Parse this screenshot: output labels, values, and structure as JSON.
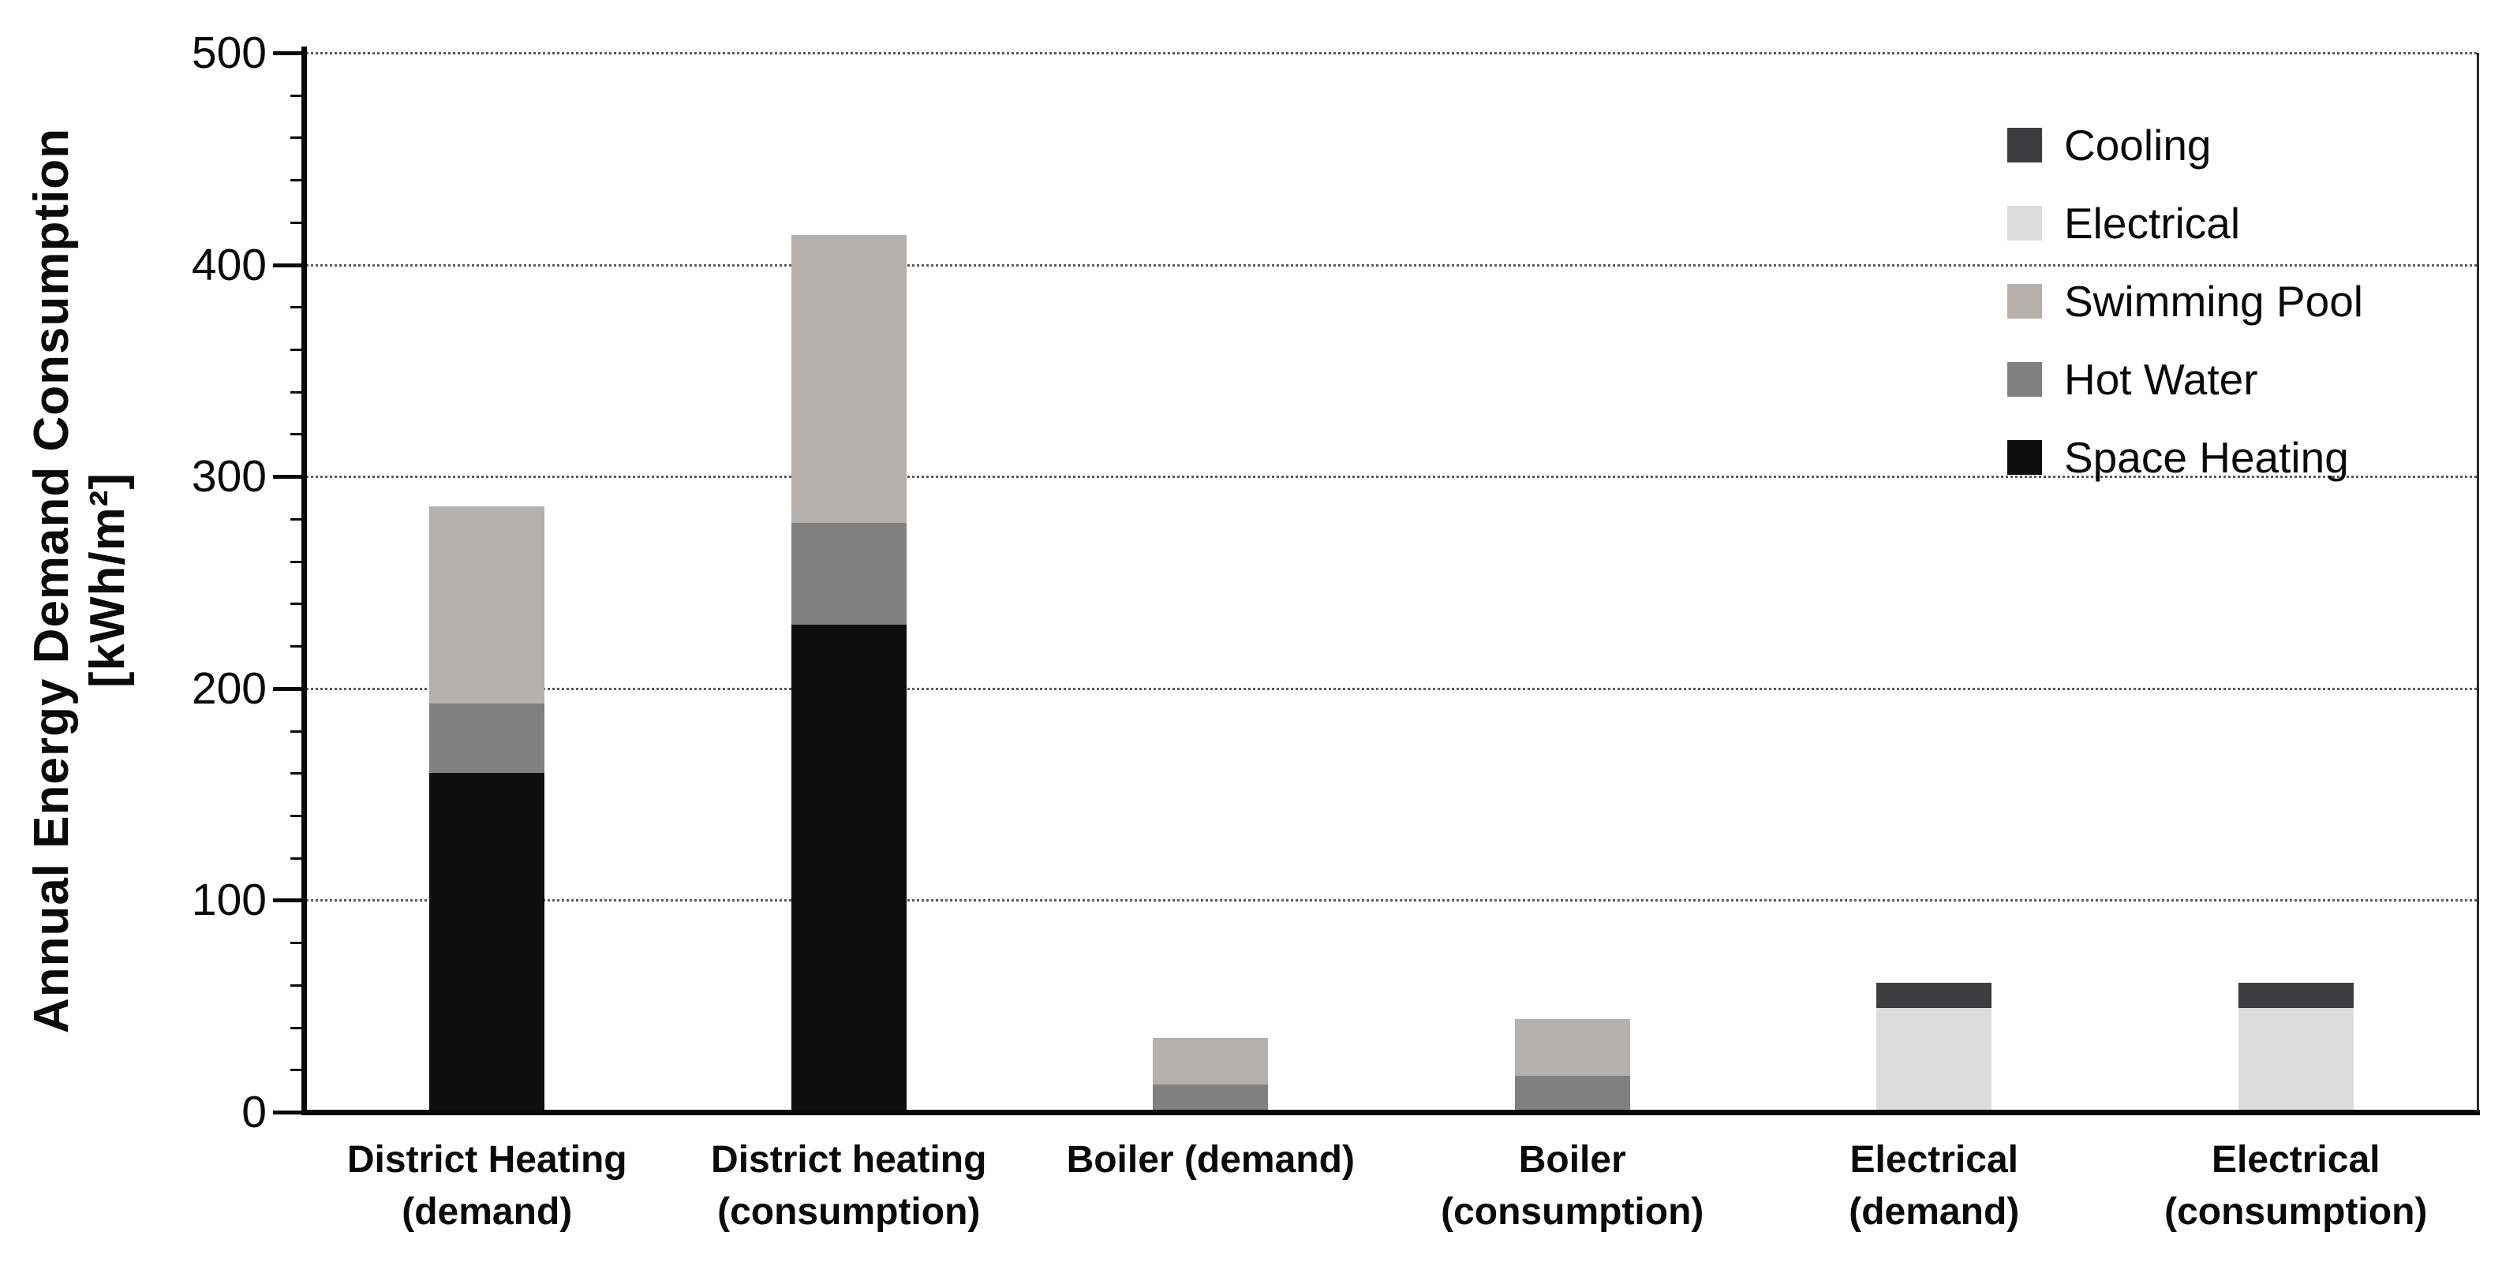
{
  "chart_data": {
    "type": "bar",
    "stacked": true,
    "title": "",
    "ylabel": "Annual Energy Demand Consumption [kWh/m²]",
    "ylabel_line1": "Annual Energy Demand Consumption",
    "ylabel_line2": "[kWh/m²]",
    "ylim": [
      0,
      500
    ],
    "yticks": [
      0,
      100,
      200,
      300,
      400,
      500
    ],
    "minor_tick_step": 20,
    "grid": "horizontal dotted lines at every major tick",
    "legend_position": "top-right inside plot",
    "categories": [
      [
        "District Heating",
        "(demand)"
      ],
      [
        "District heating",
        "(consumption)"
      ],
      [
        "Boiler (demand)"
      ],
      [
        "Boiler",
        "(consumption)"
      ],
      [
        "Electrical",
        "(demand)"
      ],
      [
        "Electrical",
        "(consumption)"
      ]
    ],
    "series": [
      {
        "name": "Space Heating",
        "color": "#0e0e0e",
        "values": [
          160,
          230,
          0,
          0,
          0,
          0
        ]
      },
      {
        "name": "Hot Water",
        "color": "#808080",
        "values": [
          33,
          48,
          13,
          17,
          0,
          0
        ]
      },
      {
        "name": "Swimming Pool",
        "color": "#b4b0ad",
        "values": [
          93,
          136,
          22,
          27,
          0,
          0
        ]
      },
      {
        "name": "Electrical",
        "color": "#dcdcdc",
        "values": [
          0,
          0,
          0,
          0,
          49,
          49
        ]
      },
      {
        "name": "Cooling",
        "color": "#3d3d3f",
        "values": [
          0,
          0,
          0,
          0,
          12,
          12
        ]
      }
    ],
    "totals": [
      286,
      414,
      35,
      44,
      61,
      61
    ],
    "legend_order": [
      "Cooling",
      "Electrical",
      "Swimming Pool",
      "Hot Water",
      "Space Heating"
    ]
  }
}
